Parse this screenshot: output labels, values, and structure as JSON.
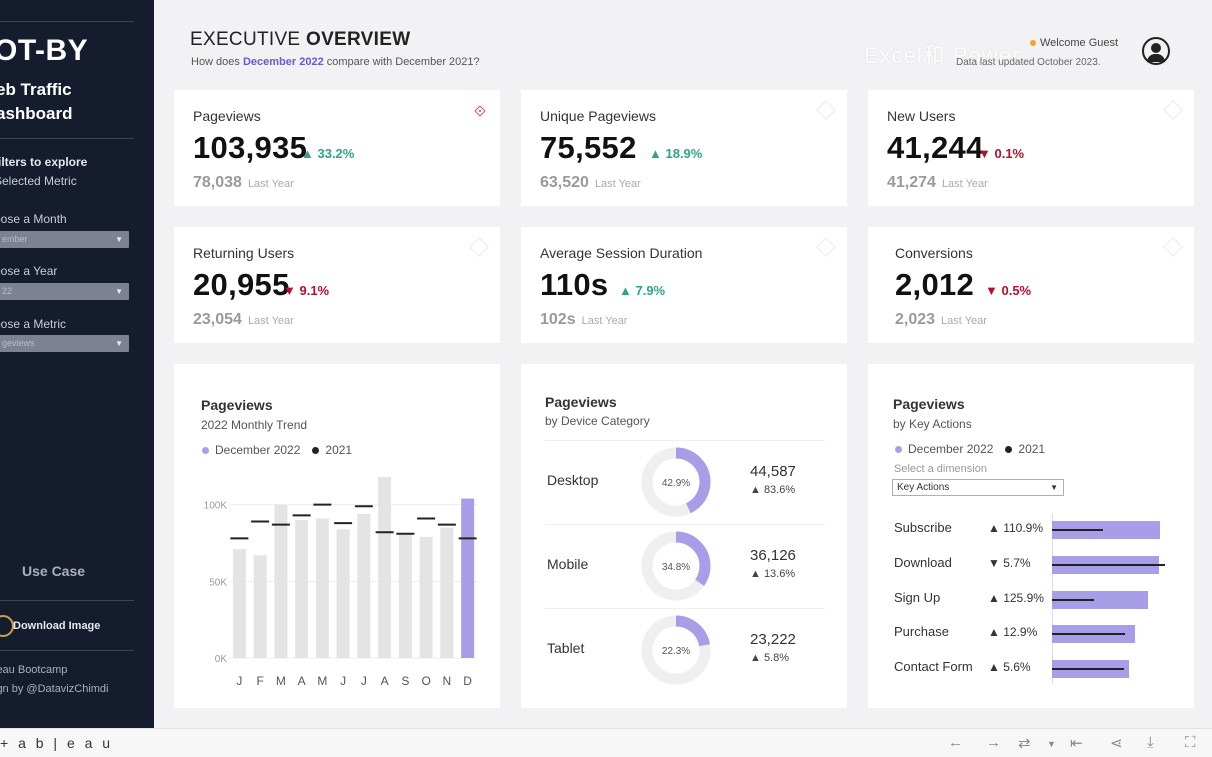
{
  "sidebar": {
    "brand": "OT-BY",
    "subtitle_line1": "eb Traffic",
    "subtitle_line2": "ashboard",
    "instructions_line1": "filters to explore",
    "instructions_line2": "Selected Metric",
    "month_label": "oose a Month",
    "month_value": "ember",
    "year_label": "oose a Year",
    "year_value": "22",
    "metric_label": "oose a Metric",
    "metric_value": "geviews",
    "use_case": "Use Case",
    "download": "Download Image",
    "footer_line1": "leau Bootcamp",
    "footer_line2": "ign by @DatavizChimdi"
  },
  "header": {
    "title_light": "EXECUTIVE ",
    "title_bold": "OVERVIEW",
    "subtitle_pre": "How does ",
    "subtitle_highlight": "December 2022",
    "subtitle_post": " compare with December 2021?",
    "watermark": "Excel和 Power",
    "welcome": "Welcome Guest",
    "updated": "Data last updated October 2023."
  },
  "kpis": [
    {
      "label": "Pageviews",
      "value": "103,935",
      "delta": "▲ 33.2%",
      "direction": "up",
      "previous": "78,038",
      "previous_label": "Last Year"
    },
    {
      "label": "Unique Pageviews",
      "value": "75,552",
      "delta": "▲ 18.9%",
      "direction": "up",
      "previous": "63,520",
      "previous_label": "Last Year"
    },
    {
      "label": "New Users",
      "value": "41,244",
      "delta": "▼ 0.1%",
      "direction": "down",
      "previous": "41,274",
      "previous_label": "Last Year"
    },
    {
      "label": "Returning Users",
      "value": "20,955",
      "delta": "▼ 9.1%",
      "direction": "down",
      "previous": "23,054",
      "previous_label": "Last Year"
    },
    {
      "label": "Average Session Duration",
      "value": "110s",
      "delta": "▲ 7.9%",
      "direction": "up",
      "previous": "102s",
      "previous_label": "Last Year"
    },
    {
      "label": "Conversions",
      "value": "2,012",
      "delta": "▼ 0.5%",
      "direction": "down",
      "previous": "2,023",
      "previous_label": "Last Year"
    }
  ],
  "trend": {
    "title": "Pageviews",
    "subtitle": "2022 Monthly Trend",
    "legend_current": "December 2022",
    "legend_prior": "2021"
  },
  "device": {
    "title": "Pageviews",
    "subtitle": "by Device Category",
    "rows": [
      {
        "name": "Desktop",
        "share_label": "42.9%",
        "share": 42.9,
        "value": "44,587",
        "change": "▲ 83.6%"
      },
      {
        "name": "Mobile",
        "share_label": "34.8%",
        "share": 34.8,
        "value": "36,126",
        "change": "▲ 13.6%"
      },
      {
        "name": "Tablet",
        "share_label": "22.3%",
        "share": 22.3,
        "value": "23,222",
        "change": "▲ 5.8%"
      }
    ]
  },
  "actions": {
    "title": "Pageviews",
    "subtitle": "by Key Actions",
    "legend_current": "December 2022",
    "legend_prior": "2021",
    "dimension_hint": "Select a dimension",
    "dimension_value": "Key Actions",
    "rows": [
      {
        "name": "Subscribe",
        "change": "▲ 110.9%",
        "current": 1.0,
        "prior": 0.47
      },
      {
        "name": "Download",
        "change": "▼ 5.7%",
        "current": 0.99,
        "prior": 1.05
      },
      {
        "name": "Sign Up",
        "change": "▲ 125.9%",
        "current": 0.89,
        "prior": 0.39
      },
      {
        "name": "Purchase",
        "change": "▲ 12.9%",
        "current": 0.77,
        "prior": 0.68
      },
      {
        "name": "Contact Form",
        "change": "▲ 5.6%",
        "current": 0.71,
        "prior": 0.67
      }
    ]
  },
  "bottom": {
    "logo": "+ a b | e a u"
  },
  "colors": {
    "accent": "#a89ee8",
    "up": "#2ea58a",
    "down": "#b3112a",
    "sidebar": "#141c2e"
  },
  "chart_data": {
    "type": "bar",
    "title": "Pageviews",
    "subtitle": "2022 Monthly Trend",
    "categories": [
      "J",
      "F",
      "M",
      "A",
      "M",
      "J",
      "J",
      "A",
      "S",
      "O",
      "N",
      "D"
    ],
    "series": [
      {
        "name": "2022",
        "values": [
          71000,
          67000,
          100000,
          90000,
          91000,
          84000,
          94000,
          118000,
          81000,
          79000,
          85000,
          104000
        ]
      },
      {
        "name": "2021",
        "values": [
          78000,
          89000,
          87000,
          93000,
          100000,
          88000,
          99000,
          82000,
          81000,
          91000,
          87000,
          78000
        ]
      }
    ],
    "highlight": "December 2022",
    "yticks": [
      "0K",
      "50K",
      "100K"
    ],
    "ylim": [
      0,
      120000
    ]
  }
}
